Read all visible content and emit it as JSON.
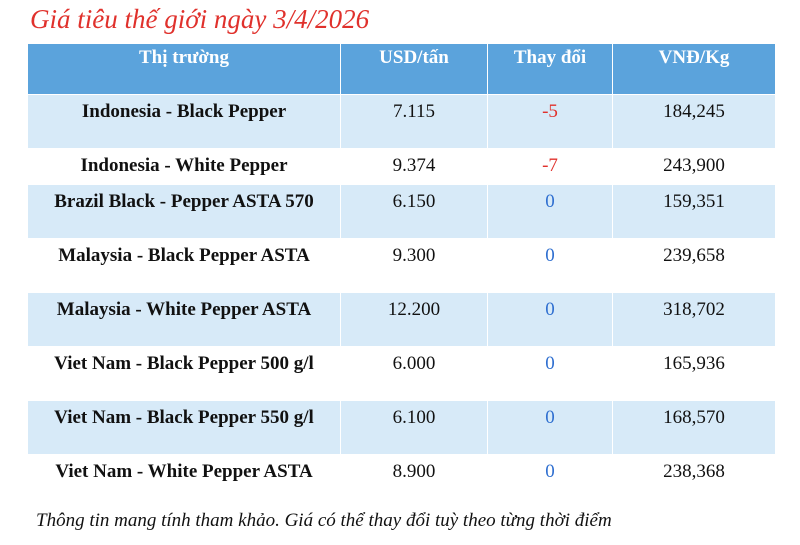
{
  "title": "Giá tiêu thế giới ngày 3/4/2026",
  "table": {
    "header": [
      "Thị trường",
      "USD/tấn",
      "Thay đổi",
      "VNĐ/Kg"
    ],
    "rows": [
      [
        "Indonesia - Black Pepper",
        "7.115",
        "-5",
        "184,245"
      ],
      [
        "Indonesia - White Pepper",
        "9.374",
        "-7",
        "243,900"
      ],
      [
        "Brazil Black - Pepper ASTA 570",
        "6.150",
        "0",
        "159,351"
      ],
      [
        "Malaysia - Black Pepper ASTA",
        "9.300",
        "0",
        "239,658"
      ],
      [
        "Malaysia - White Pepper ASTA",
        "12.200",
        "0",
        "318,702"
      ],
      [
        "Viet Nam - Black Pepper 500 g/l",
        "6.000",
        "0",
        "165,936"
      ],
      [
        "Viet Nam - Black Pepper 550 g/l",
        "6.100",
        "0",
        "168,570"
      ],
      [
        "Viet Nam - White Pepper ASTA",
        "8.900",
        "0",
        "238,368"
      ]
    ]
  },
  "note": "Thông tin mang tính tham khảo. Giá có thể thay đổi tuỳ theo từng thời điểm"
}
